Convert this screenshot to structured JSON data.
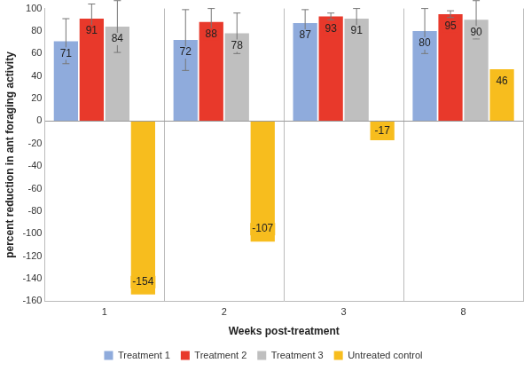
{
  "chart_data": {
    "type": "bar",
    "x_label": "Weeks post-treatment",
    "y_label": "percent reduction in ant foraging activity",
    "categories": [
      "1",
      "2",
      "3",
      "8"
    ],
    "series": [
      {
        "name": "Treatment 1",
        "color": "#8fabdc",
        "values": [
          71,
          72,
          87,
          80
        ],
        "errors": [
          20,
          27,
          12,
          20
        ]
      },
      {
        "name": "Treatment 2",
        "color": "#e8392b",
        "values": [
          91,
          88,
          93,
          95
        ],
        "errors": [
          13,
          12,
          3,
          3
        ]
      },
      {
        "name": "Treatment 3",
        "color": "#bfbfbf",
        "values": [
          84,
          78,
          91,
          90
        ],
        "errors": [
          23,
          18,
          9,
          17
        ]
      },
      {
        "name": "Untreated control",
        "color": "#f7bd1e",
        "values": [
          -154,
          -107,
          -17,
          46
        ]
      }
    ],
    "ylim": [
      -160,
      100
    ],
    "yticks": [
      -160,
      -140,
      -120,
      -100,
      -80,
      -60,
      -40,
      -20,
      0,
      20,
      40,
      60,
      80,
      100
    ],
    "grid": true,
    "legend": "bottom",
    "data_labels": true
  }
}
